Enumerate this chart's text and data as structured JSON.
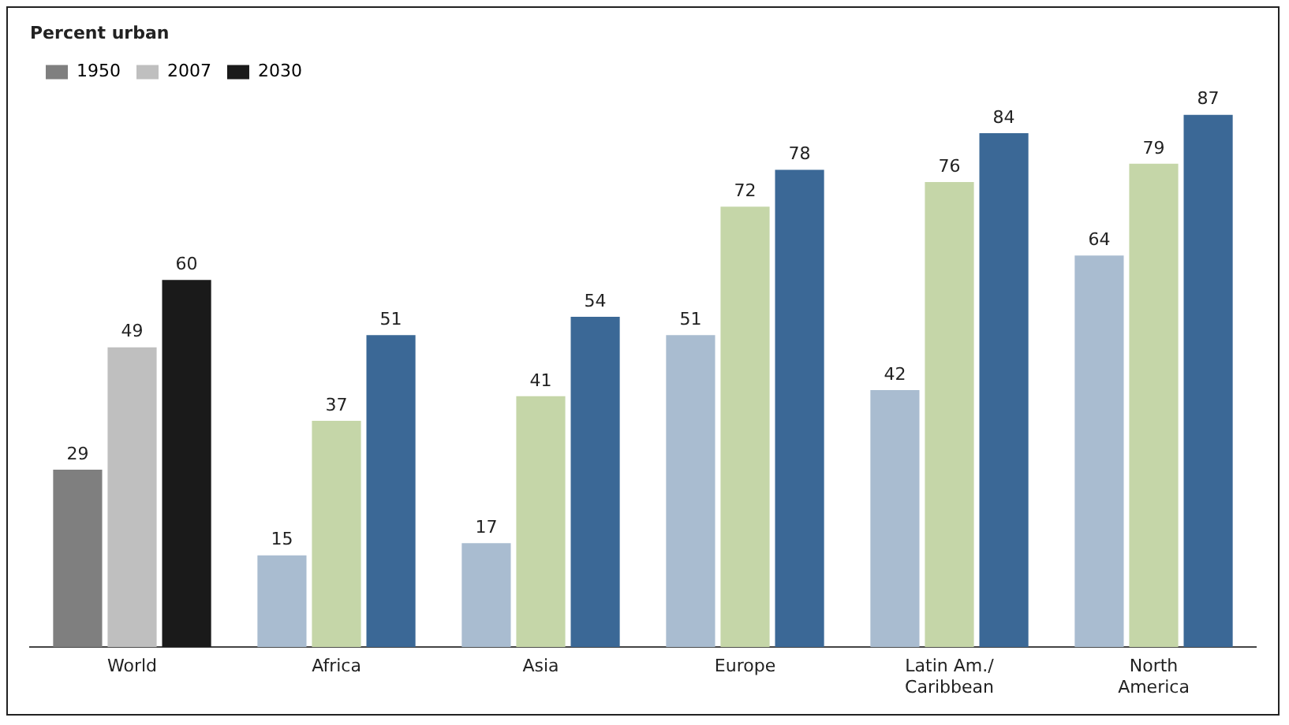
{
  "chart_data": {
    "type": "bar",
    "title": "Percent urban",
    "categories": [
      "World",
      "Africa",
      "Asia",
      "Europe",
      "Latin Am./ Caribbean",
      "North America"
    ],
    "series": [
      {
        "name": "1950",
        "color": "#7f7f7f",
        "colors": [
          "#7f7f7f",
          "#a9bcd0",
          "#a9bcd0",
          "#a9bcd0",
          "#a9bcd0",
          "#a9bcd0"
        ],
        "values": [
          29,
          15,
          17,
          51,
          42,
          64
        ]
      },
      {
        "name": "2007",
        "color": "#bfbfbf",
        "colors": [
          "#bfbfbf",
          "#c5d6a8",
          "#c5d6a8",
          "#c5d6a8",
          "#c5d6a8",
          "#c5d6a8"
        ],
        "values": [
          49,
          37,
          41,
          72,
          76,
          79
        ]
      },
      {
        "name": "2030",
        "color": "#1a1a1a",
        "colors": [
          "#1a1a1a",
          "#3b6896",
          "#3b6896",
          "#3b6896",
          "#3b6896",
          "#3b6896"
        ],
        "values": [
          60,
          51,
          54,
          78,
          84,
          87
        ]
      }
    ],
    "data_labels": true,
    "legend": "top left",
    "grid": false
  }
}
